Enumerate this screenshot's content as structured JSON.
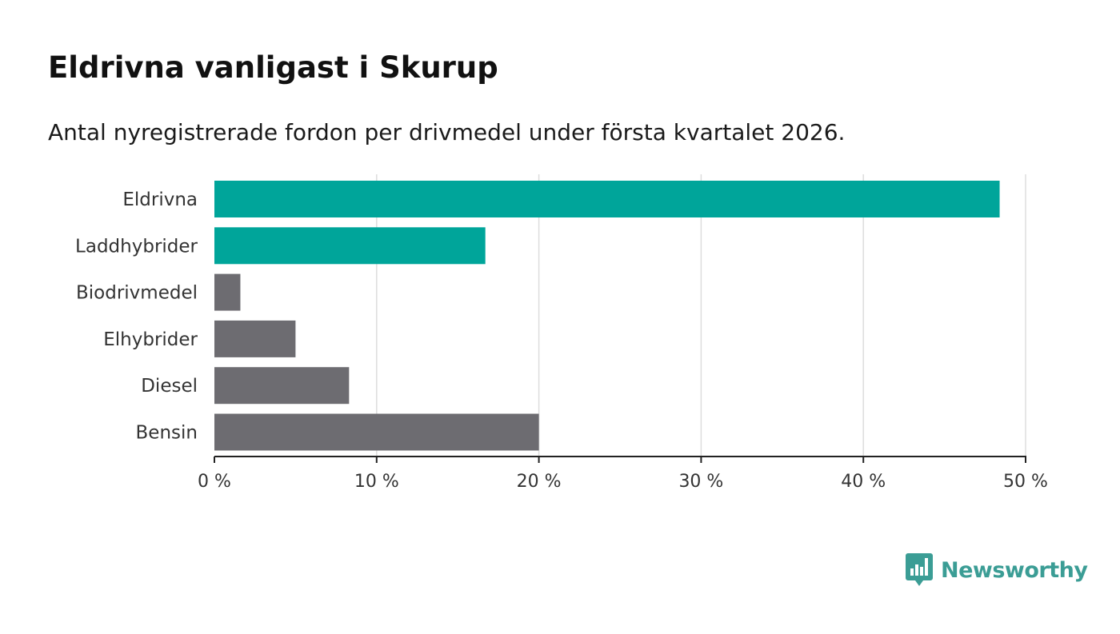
{
  "header": {
    "title": "Eldrivna vanligast i Skurup",
    "subtitle": "Antal nyregistrerade fordon per drivmedel under första kvartalet 2026."
  },
  "brand": {
    "name": "Newsworthy",
    "color": "#3b9d95"
  },
  "colors": {
    "highlight": "#00a59a",
    "default": "#6d6c71",
    "grid": "#dddddd",
    "axis": "#222222"
  },
  "chart_data": {
    "type": "bar",
    "orientation": "horizontal",
    "title": "Eldrivna vanligast i Skurup",
    "subtitle": "Antal nyregistrerade fordon per drivmedel under första kvartalet 2026.",
    "xlabel": "",
    "ylabel": "",
    "categories": [
      "Eldrivna",
      "Laddhybrider",
      "Biodrivmedel",
      "Elhybrider",
      "Diesel",
      "Bensin"
    ],
    "values": [
      48.4,
      16.7,
      1.6,
      5.0,
      8.3,
      20.0
    ],
    "highlighted": [
      true,
      true,
      false,
      false,
      false,
      false
    ],
    "xlim": [
      0,
      50
    ],
    "ticks": [
      0,
      10,
      20,
      30,
      40,
      50
    ],
    "tick_labels": [
      "0 %",
      "10 %",
      "20 %",
      "30 %",
      "40 %",
      "50 %"
    ],
    "grid": true,
    "legend": "none"
  }
}
